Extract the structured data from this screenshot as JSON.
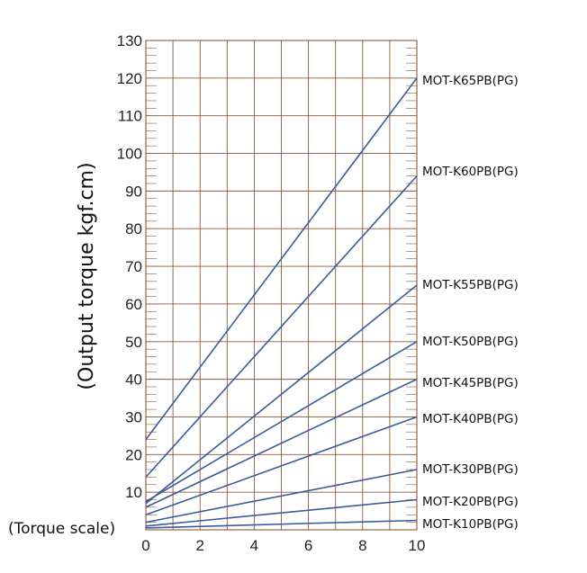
{
  "chart_data": {
    "type": "line",
    "ylabel": "(Output torque kgf.cm)",
    "xlabel": "(Torque scale)",
    "xlim": [
      0,
      10
    ],
    "ylim": [
      0,
      130
    ],
    "x_ticks": [
      0,
      2,
      4,
      6,
      8,
      10
    ],
    "y_ticks": [
      10,
      20,
      30,
      40,
      50,
      60,
      70,
      80,
      90,
      100,
      110,
      120,
      130
    ],
    "grid": true,
    "line_color": "#3a5a9a",
    "series": [
      {
        "name": "MOT-K65PB(PG)",
        "x": [
          0,
          10
        ],
        "y": [
          24,
          120
        ]
      },
      {
        "name": "MOT-K60PB(PG)",
        "x": [
          0,
          10
        ],
        "y": [
          14,
          94
        ]
      },
      {
        "name": "MOT-K55PB(PG)",
        "x": [
          0,
          10
        ],
        "y": [
          7,
          65
        ]
      },
      {
        "name": "MOT-K50PB(PG)",
        "x": [
          0,
          10
        ],
        "y": [
          7.5,
          50
        ]
      },
      {
        "name": "MOT-K45PB(PG)",
        "x": [
          0,
          10
        ],
        "y": [
          6,
          40
        ]
      },
      {
        "name": "MOT-K40PB(PG)",
        "x": [
          0,
          10
        ],
        "y": [
          4,
          30
        ]
      },
      {
        "name": "MOT-K30PB(PG)",
        "x": [
          0,
          10
        ],
        "y": [
          2,
          16
        ]
      },
      {
        "name": "MOT-K20PB(PG)",
        "x": [
          0,
          10
        ],
        "y": [
          1,
          8
        ]
      },
      {
        "name": "MOT-K10PB(PG)",
        "x": [
          0,
          10
        ],
        "y": [
          0.5,
          2.5
        ]
      }
    ]
  }
}
